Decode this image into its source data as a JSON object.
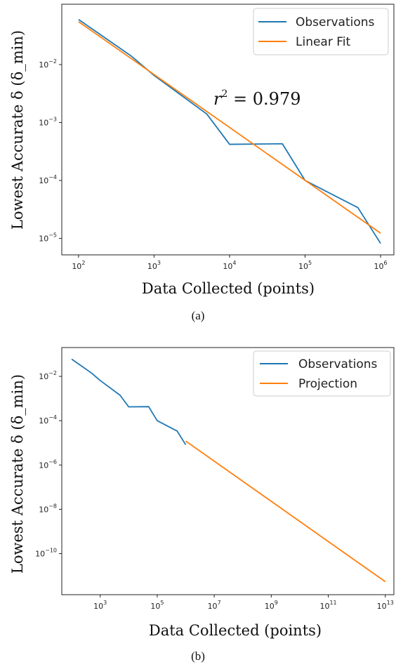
{
  "chart_data": [
    {
      "type": "line",
      "caption": "(a)",
      "xlabel": "Data Collected (points)",
      "ylabel": "Lowest Accurate δ (δ_min)",
      "xscale": "log",
      "yscale": "log",
      "xlim": [
        60,
        1500000
      ],
      "ylim": [
        5.2e-06,
        0.11
      ],
      "xticks": [
        {
          "value": 100,
          "base": "10",
          "exp": "2"
        },
        {
          "value": 1000,
          "base": "10",
          "exp": "3"
        },
        {
          "value": 10000,
          "base": "10",
          "exp": "4"
        },
        {
          "value": 100000,
          "base": "10",
          "exp": "5"
        },
        {
          "value": 1000000,
          "base": "10",
          "exp": "6"
        }
      ],
      "yticks": [
        {
          "value": 0.01,
          "base": "10",
          "exp": "−2"
        },
        {
          "value": 0.001,
          "base": "10",
          "exp": "−3"
        },
        {
          "value": 0.0001,
          "base": "10",
          "exp": "−4"
        },
        {
          "value": 1e-05,
          "base": "10",
          "exp": "−5"
        }
      ],
      "legend_position": "top-right",
      "annotation": {
        "text_base": "r",
        "text_exp": "2",
        "text_rest": " = 0.979",
        "x": 40000,
        "y": 0.0038
      },
      "series": [
        {
          "name": "Observations",
          "color": "#1f77b4",
          "x": [
            100,
            500,
            1000,
            5000,
            10000,
            50000,
            100000,
            500000,
            1000000
          ],
          "y": [
            0.06,
            0.014,
            0.0065,
            0.0014,
            0.00042,
            0.00043,
            0.0001,
            3.4e-05,
            8.2e-06
          ]
        },
        {
          "name": "Linear Fit",
          "color": "#ff7f0e",
          "x": [
            100,
            1000000
          ],
          "y": [
            0.055,
            1.23e-05
          ]
        }
      ]
    },
    {
      "type": "line",
      "caption": "(b)",
      "xlabel": "Data Collected (points)",
      "ylabel": "Lowest Accurate δ (δ_min)",
      "xscale": "log",
      "yscale": "log",
      "xlim": [
        45,
        20000000000000
      ],
      "ylim": [
        1.4e-12,
        0.2
      ],
      "xticks": [
        {
          "value": 1000,
          "base": "10",
          "exp": "3"
        },
        {
          "value": 100000,
          "base": "10",
          "exp": "5"
        },
        {
          "value": 10000000,
          "base": "10",
          "exp": "7"
        },
        {
          "value": 1000000000,
          "base": "10",
          "exp": "9"
        },
        {
          "value": 100000000000,
          "base": "10",
          "exp": "11"
        },
        {
          "value": 10000000000000,
          "base": "10",
          "exp": "13"
        }
      ],
      "yticks": [
        {
          "value": 0.01,
          "base": "10",
          "exp": "−2"
        },
        {
          "value": 0.0001,
          "base": "10",
          "exp": "−4"
        },
        {
          "value": 1e-06,
          "base": "10",
          "exp": "−6"
        },
        {
          "value": 1e-08,
          "base": "10",
          "exp": "−8"
        },
        {
          "value": 1e-10,
          "base": "10",
          "exp": "−10"
        }
      ],
      "legend_position": "top-right",
      "series": [
        {
          "name": "Observations",
          "color": "#1f77b4",
          "x": [
            100,
            500,
            1000,
            5000,
            10000,
            50000,
            100000,
            500000,
            1000000
          ],
          "y": [
            0.06,
            0.014,
            0.0065,
            0.0014,
            0.00042,
            0.00043,
            0.0001,
            3.4e-05,
            8.2e-06
          ]
        },
        {
          "name": "Projection",
          "color": "#ff7f0e",
          "x": [
            1000000,
            10000000000000
          ],
          "y": [
            1.2e-05,
            5.4e-12
          ]
        }
      ]
    }
  ]
}
